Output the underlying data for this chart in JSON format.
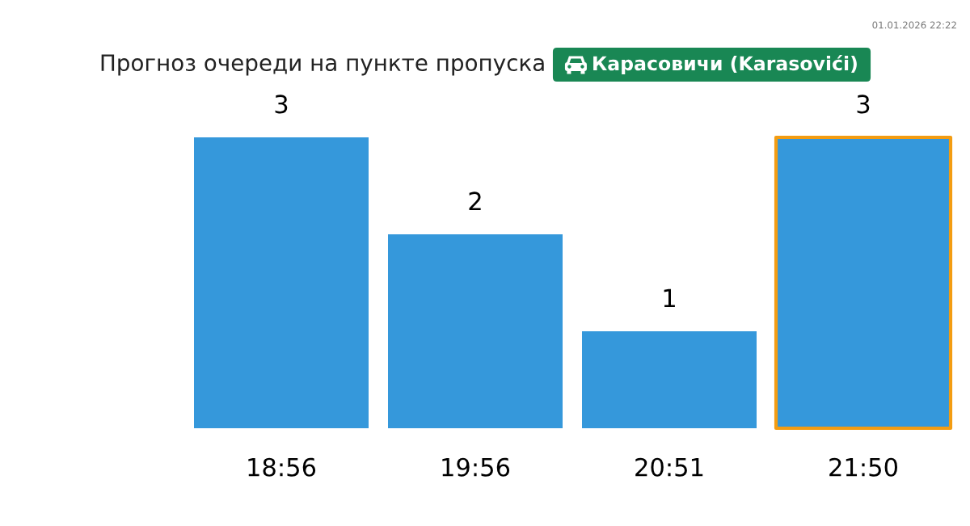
{
  "chart_data": {
    "type": "bar",
    "title": "Прогноз очереди на пункте пропуска",
    "subtitle": "Карасовичи (Karasovići)",
    "categories": [
      "18:56",
      "19:56",
      "20:51",
      "21:50"
    ],
    "values": [
      3,
      2,
      1,
      3
    ],
    "color": "#3598db",
    "data_labels": true,
    "tick_labels": "x",
    "annotations": [
      "01.01.2026 22:22"
    ]
  }
}
